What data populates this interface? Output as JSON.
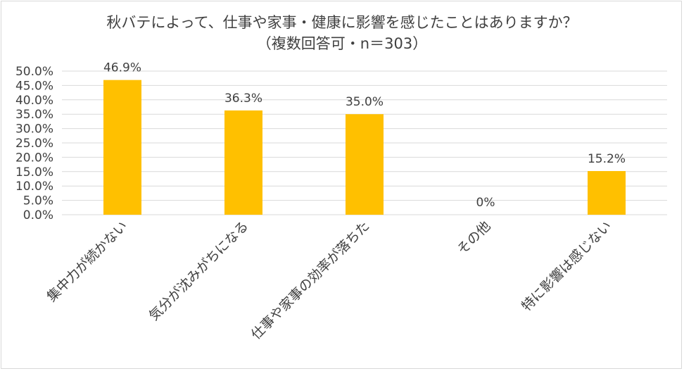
{
  "chart_data": {
    "type": "bar",
    "title": "秋バテによって、仕事や家事・健康に影響を感じたことはありますか？",
    "subtitle": "（複数回答可・n＝303）",
    "categories": [
      "集中力が続かない",
      "気分が沈みがちになる",
      "仕事や家事の効率が落ちた",
      "その他",
      "特に影響は感じない"
    ],
    "values": [
      46.9,
      36.3,
      35.0,
      0,
      15.2
    ],
    "data_labels": [
      "46.9%",
      "36.3%",
      "35.0%",
      "0%",
      "15.2%"
    ],
    "y_ticks": [
      "0.0%",
      "5.0%",
      "10.0%",
      "15.0%",
      "20.0%",
      "25.0%",
      "30.0%",
      "35.0%",
      "40.0%",
      "45.0%",
      "50.0%"
    ],
    "ylim": [
      0,
      50
    ],
    "grid": true,
    "bar_color": "#FFC000"
  }
}
